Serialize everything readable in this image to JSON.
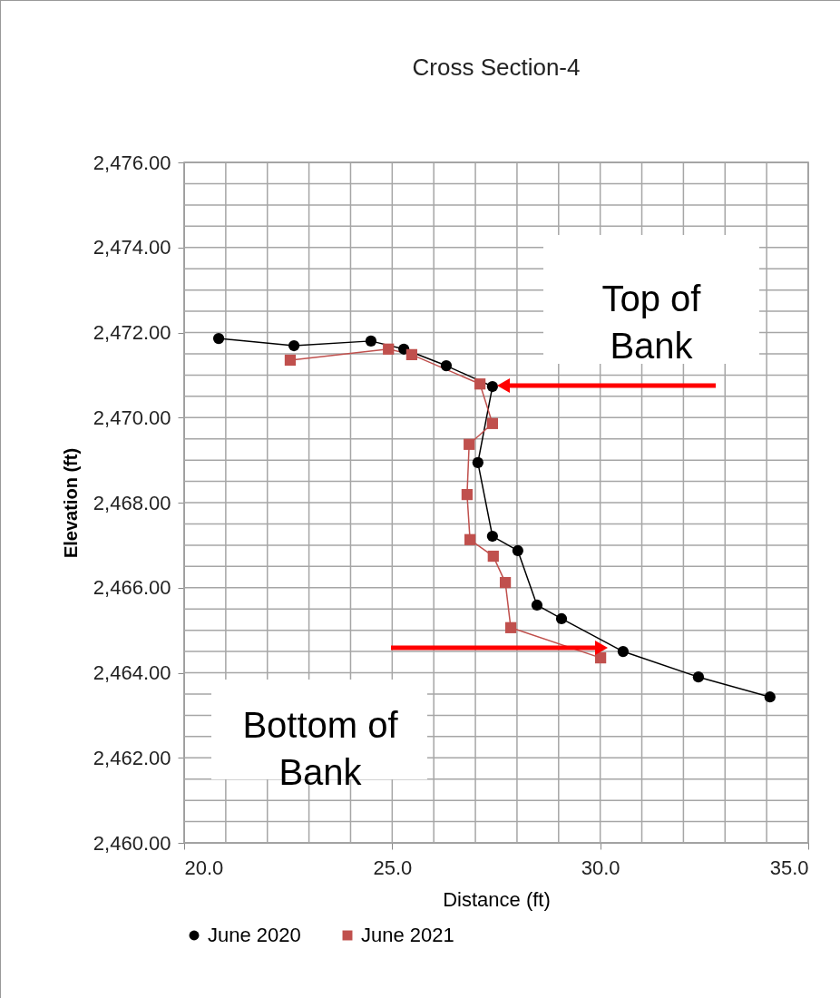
{
  "chart_data": {
    "type": "line",
    "title": "Cross Section-4",
    "xlabel": "Distance (ft)",
    "ylabel": "Elevation (ft)",
    "xlim": [
      20,
      35
    ],
    "xticks": [
      {
        "value": 20,
        "label": "20.0"
      },
      {
        "value": 25,
        "label": "25.0"
      },
      {
        "value": 30,
        "label": "30.0"
      },
      {
        "value": 35,
        "label": "35.0"
      }
    ],
    "ylim": [
      2460,
      2476
    ],
    "yticks": [
      {
        "value": 2460,
        "label": "2,460.00"
      },
      {
        "value": 2462,
        "label": "2,462.00"
      },
      {
        "value": 2464,
        "label": "2,464.00"
      },
      {
        "value": 2466,
        "label": "2,466.00"
      },
      {
        "value": 2468,
        "label": "2,468.00"
      },
      {
        "value": 2470,
        "label": "2,470.00"
      },
      {
        "value": 2472,
        "label": "2,472.00"
      },
      {
        "value": 2474,
        "label": "2,474.00"
      },
      {
        "value": 2476,
        "label": "2,476.00"
      }
    ],
    "grid": true,
    "legend": "bottom",
    "series": [
      {
        "name": "June 2020",
        "color": "#000000",
        "marker": "circle",
        "x": [
          20.83,
          22.64,
          24.49,
          25.28,
          26.3,
          27.41,
          27.06,
          27.41,
          28.02,
          28.48,
          29.07,
          30.55,
          32.36,
          34.08
        ],
        "values": [
          2471.86,
          2471.69,
          2471.8,
          2471.61,
          2471.22,
          2470.73,
          2468.94,
          2467.21,
          2466.87,
          2465.59,
          2465.27,
          2464.5,
          2463.9,
          2463.43
        ]
      },
      {
        "name": "June 2021",
        "color": "#c0504d",
        "marker": "square",
        "x": [
          22.55,
          24.91,
          25.47,
          27.11,
          27.41,
          26.85,
          26.8,
          26.87,
          27.43,
          27.72,
          27.85,
          30.01
        ],
        "values": [
          2471.35,
          2471.61,
          2471.48,
          2470.79,
          2469.86,
          2469.37,
          2468.19,
          2467.13,
          2466.74,
          2466.12,
          2465.06,
          2464.35
        ]
      }
    ],
    "annotations": [
      "Top of Bank",
      "Bottom of Bank"
    ]
  }
}
